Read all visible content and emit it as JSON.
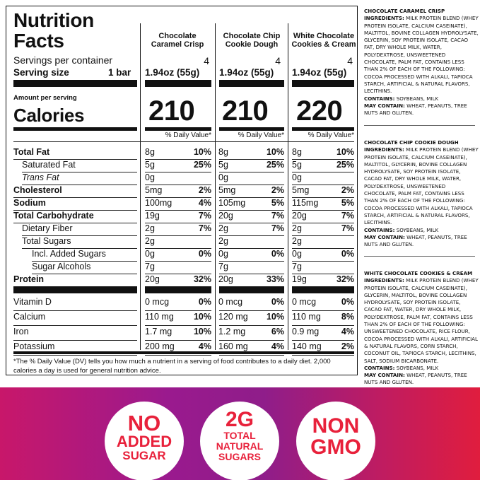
{
  "panel": {
    "title": "Nutrition Facts",
    "servings_label": "Servings per container",
    "serving_size_label": "Serving size",
    "serving_size_value": "1 bar",
    "amount_per_serving": "Amount per serving",
    "calories_label": "Calories",
    "dv_header": "% Daily Value*",
    "products": [
      {
        "name": "Chocolate Caramel Crisp",
        "servings": "4",
        "serving_size": "1.94oz (55g)",
        "calories": "210"
      },
      {
        "name": "Chocolate Chip Cookie Dough",
        "servings": "4",
        "serving_size": "1.94oz (55g)",
        "calories": "210"
      },
      {
        "name": "White Chocolate Cookies & Cream",
        "servings": "4",
        "serving_size": "1.94oz (55g)",
        "calories": "220"
      }
    ],
    "rows": [
      {
        "label": "Total Fat",
        "values": [
          [
            "8g",
            "10%"
          ],
          [
            "8g",
            "10%"
          ],
          [
            "8g",
            "10%"
          ]
        ]
      },
      {
        "label": "Saturated Fat",
        "values": [
          [
            "5g",
            "25%"
          ],
          [
            "5g",
            "25%"
          ],
          [
            "5g",
            "25%"
          ]
        ]
      },
      {
        "label": "Trans Fat",
        "values": [
          [
            "0g",
            ""
          ],
          [
            "0g",
            ""
          ],
          [
            "0g",
            ""
          ]
        ]
      },
      {
        "label": "Cholesterol",
        "values": [
          [
            "5mg",
            "2%"
          ],
          [
            "5mg",
            "2%"
          ],
          [
            "5mg",
            "2%"
          ]
        ]
      },
      {
        "label": "Sodium",
        "values": [
          [
            "100mg",
            "4%"
          ],
          [
            "105mg",
            "5%"
          ],
          [
            "115mg",
            "5%"
          ]
        ]
      },
      {
        "label": "Total Carbohydrate",
        "values": [
          [
            "19g",
            "7%"
          ],
          [
            "20g",
            "7%"
          ],
          [
            "20g",
            "7%"
          ]
        ]
      },
      {
        "label": "Dietary Fiber",
        "values": [
          [
            "2g",
            "7%"
          ],
          [
            "2g",
            "7%"
          ],
          [
            "2g",
            "7%"
          ]
        ]
      },
      {
        "label": "Total Sugars",
        "values": [
          [
            "2g",
            ""
          ],
          [
            "2g",
            ""
          ],
          [
            "2g",
            ""
          ]
        ]
      },
      {
        "label": "Incl. Added Sugars",
        "values": [
          [
            "0g",
            "0%"
          ],
          [
            "0g",
            "0%"
          ],
          [
            "0g",
            "0%"
          ]
        ]
      },
      {
        "label": "Sugar Alcohols",
        "values": [
          [
            "7g",
            ""
          ],
          [
            "7g",
            ""
          ],
          [
            "7g",
            ""
          ]
        ]
      },
      {
        "label": "Protein",
        "values": [
          [
            "20g",
            "32%"
          ],
          [
            "20g",
            "33%"
          ],
          [
            "19g",
            "32%"
          ]
        ]
      },
      {
        "label": "Vitamin D",
        "values": [
          [
            "0 mcg",
            "0%"
          ],
          [
            "0 mcg",
            "0%"
          ],
          [
            "0 mcg",
            "0%"
          ]
        ]
      },
      {
        "label": "Calcium",
        "values": [
          [
            "110 mg",
            "10%"
          ],
          [
            "120 mg",
            "10%"
          ],
          [
            "110 mg",
            "8%"
          ]
        ]
      },
      {
        "label": "Iron",
        "values": [
          [
            "1.7 mg",
            "10%"
          ],
          [
            "1.2 mg",
            "6%"
          ],
          [
            "0.9 mg",
            "4%"
          ]
        ]
      },
      {
        "label": "Potassium",
        "values": [
          [
            "200 mg",
            "4%"
          ],
          [
            "160 mg",
            "4%"
          ],
          [
            "140 mg",
            "2%"
          ]
        ]
      }
    ],
    "footnote": "*The % Daily Value (DV) tells you how much a nutrient in a serving of food contributes to a daily diet. 2,000 calories a day is used for general nutrition advice."
  },
  "ingredients": [
    {
      "heading": "CHOCOLATE CARAMEL CRISP",
      "ingredients_label": "INGREDIENTS:",
      "ingredients_text": "MILK PROTEIN BLEND (WHEY PROTEIN ISOLATE, CALCIUM CASEINATE), MALTITOL, BOVINE COLLAGEN HYDROLYSATE, GLYCERIN, SOY PROTEIN ISOLATE, CACAO FAT, DRY WHOLE MILK, WATER, POLYDEXTROSE, UNSWEETENED CHOCOLATE, PALM FAT, CONTAINS LESS THAN 2% OF EACH OF THE FOLLOWING: COCOA PROCESSED WITH ALKALI, TAPIOCA STARCH, ARTIFICIAL & NATURAL FLAVORS, LECITHINS.",
      "contains_label": "CONTAINS:",
      "contains_text": "SOYBEANS, MILK",
      "may_contain_label": "MAY CONTAIN:",
      "may_contain_text": "WHEAT, PEANUTS, TREE NUTS AND GLUTEN."
    },
    {
      "heading": "CHOCOLATE CHIP COOKIE DOUGH",
      "ingredients_label": "INGREDIENTS:",
      "ingredients_text": "MILK PROTEIN BLEND (WHEY PROTEIN ISOLATE, CALCIUM CASEINATE), MALTITOL, GLYCERIN, BOVINE COLLAGEN HYDROLYSATE, SOY PROTEIN ISOLATE, CACAO FAT, DRY WHOLE MILK, WATER, POLYDEXTROSE, UNSWEETENED CHOCOLATE, PALM FAT, CONTAINS LESS THAN 2% OF EACH OF THE FOLLOWING: COCOA PROCESSED WITH ALKALI, TAPIOCA STARCH, ARTIFICIAL & NATURAL FLAVORS, LECITHINS.",
      "contains_label": "CONTAINS:",
      "contains_text": "SOYBEANS, MILK",
      "may_contain_label": "MAY CONTAIN:",
      "may_contain_text": "WHEAT, PEANUTS, TREE NUTS AND GLUTEN."
    },
    {
      "heading": "WHITE CHOCOLATE COOKIES & CREAM",
      "ingredients_label": "INGREDIENTS:",
      "ingredients_text": "MILK PROTEIN BLEND (WHEY PROTEIN ISOLATE, CALCIUM CASEINATE), GLYCERIN, MALTITOL, BOVINE COLLAGEN HYDROLYSATE, SOY PROTEIN ISOLATE, CACAO FAT, WATER, DRY WHOLE MILK, POLYDEXTROSE, PALM FAT, CONTAINS LESS THAN 2% OF EACH OF THE FOLLOWING: UNSWEETENED CHOCOLATE, RICE FLOUR, COCOA PROCESSED WITH ALKALI, ARTIFICIAL & NATURAL FLAVORS, CORN STARCH, COCONUT OIL, TAPIOCA STARCH, LECITHINS, SALT, SODIUM BICARBONATE.",
      "contains_label": "CONTAINS:",
      "contains_text": "SOYBEANS, MILK",
      "may_contain_label": "MAY CONTAIN:",
      "may_contain_text": "WHEAT, PEANUTS, TREE NUTS AND GLUTEN."
    }
  ],
  "badges": [
    {
      "line1": "NO",
      "line2": "ADDED",
      "line3": "SUGAR"
    },
    {
      "line1": "2G",
      "line2": "TOTAL",
      "line3": "NATURAL",
      "line4": "SUGARS"
    },
    {
      "line1": "NON",
      "line2": "GMO"
    }
  ],
  "colors": {
    "badge_text": "#e8213b",
    "banner_left": "#c8176a",
    "banner_mid": "#8f1d8a",
    "banner_right": "#e01d3e"
  }
}
